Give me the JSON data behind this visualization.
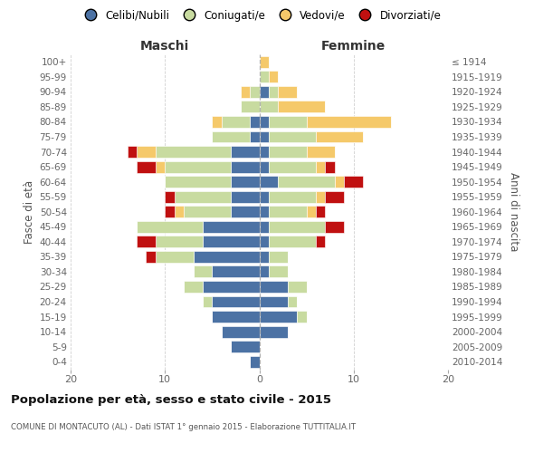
{
  "age_groups": [
    "0-4",
    "5-9",
    "10-14",
    "15-19",
    "20-24",
    "25-29",
    "30-34",
    "35-39",
    "40-44",
    "45-49",
    "50-54",
    "55-59",
    "60-64",
    "65-69",
    "70-74",
    "75-79",
    "80-84",
    "85-89",
    "90-94",
    "95-99",
    "100+"
  ],
  "birth_years": [
    "2010-2014",
    "2005-2009",
    "2000-2004",
    "1995-1999",
    "1990-1994",
    "1985-1989",
    "1980-1984",
    "1975-1979",
    "1970-1974",
    "1965-1969",
    "1960-1964",
    "1955-1959",
    "1950-1954",
    "1945-1949",
    "1940-1944",
    "1935-1939",
    "1930-1934",
    "1925-1929",
    "1920-1924",
    "1915-1919",
    "≤ 1914"
  ],
  "maschi": {
    "celibi": [
      1,
      3,
      4,
      5,
      5,
      6,
      5,
      7,
      6,
      6,
      3,
      3,
      3,
      3,
      3,
      1,
      1,
      0,
      0,
      0,
      0
    ],
    "coniugati": [
      0,
      0,
      0,
      0,
      1,
      2,
      2,
      4,
      5,
      7,
      5,
      6,
      7,
      7,
      8,
      4,
      3,
      2,
      1,
      0,
      0
    ],
    "vedovi": [
      0,
      0,
      0,
      0,
      0,
      0,
      0,
      0,
      0,
      0,
      1,
      0,
      0,
      1,
      2,
      0,
      1,
      0,
      1,
      0,
      0
    ],
    "divorziati": [
      0,
      0,
      0,
      0,
      0,
      0,
      0,
      1,
      2,
      0,
      1,
      1,
      0,
      2,
      1,
      0,
      0,
      0,
      0,
      0,
      0
    ]
  },
  "femmine": {
    "nubili": [
      0,
      0,
      3,
      4,
      3,
      3,
      1,
      1,
      1,
      1,
      1,
      1,
      2,
      1,
      1,
      1,
      1,
      0,
      1,
      0,
      0
    ],
    "coniugate": [
      0,
      0,
      0,
      1,
      1,
      2,
      2,
      2,
      5,
      6,
      4,
      5,
      6,
      5,
      4,
      5,
      4,
      2,
      1,
      1,
      0
    ],
    "vedove": [
      0,
      0,
      0,
      0,
      0,
      0,
      0,
      0,
      0,
      0,
      1,
      1,
      1,
      1,
      3,
      5,
      9,
      5,
      2,
      1,
      1
    ],
    "divorziate": [
      0,
      0,
      0,
      0,
      0,
      0,
      0,
      0,
      1,
      2,
      1,
      2,
      2,
      1,
      0,
      0,
      0,
      0,
      0,
      0,
      0
    ]
  },
  "colors": {
    "celibi_nubili": "#4c72a4",
    "coniugati": "#c8dba0",
    "vedovi": "#f5c96a",
    "divorziati": "#c01010"
  },
  "title": "Popolazione per età, sesso e stato civile - 2015",
  "subtitle": "COMUNE DI MONTACUTO (AL) - Dati ISTAT 1° gennaio 2015 - Elaborazione TUTTITALIA.IT",
  "xlabel_left": "Maschi",
  "xlabel_right": "Femmine",
  "ylabel_left": "Fasce di età",
  "ylabel_right": "Anni di nascita",
  "xlim": 20,
  "background_color": "#ffffff",
  "grid_color": "#bbbbbb"
}
